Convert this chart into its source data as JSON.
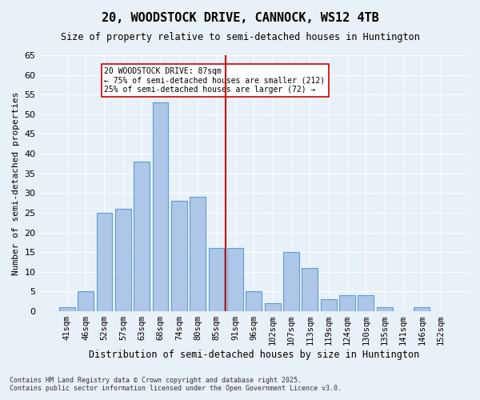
{
  "title": "20, WOODSTOCK DRIVE, CANNOCK, WS12 4TB",
  "subtitle": "Size of property relative to semi-detached houses in Huntington",
  "xlabel": "Distribution of semi-detached houses by size in Huntington",
  "ylabel": "Number of semi-detached properties",
  "bar_labels": [
    "41sqm",
    "46sqm",
    "52sqm",
    "57sqm",
    "63sqm",
    "68sqm",
    "74sqm",
    "80sqm",
    "85sqm",
    "91sqm",
    "96sqm",
    "102sqm",
    "107sqm",
    "113sqm",
    "119sqm",
    "124sqm",
    "130sqm",
    "135sqm",
    "141sqm",
    "146sqm",
    "152sqm"
  ],
  "bar_values": [
    1,
    5,
    25,
    26,
    38,
    53,
    28,
    29,
    16,
    16,
    5,
    2,
    15,
    11,
    3,
    4,
    4,
    1,
    0,
    1,
    0
  ],
  "bar_color": "#aec6e8",
  "bar_edge_color": "#5a9fd4",
  "background_color": "#e8f0f8",
  "grid_color": "#ffffff",
  "marker_value": 87,
  "marker_label": "20 WOODSTOCK DRIVE: 87sqm",
  "marker_smaller_pct": "75%",
  "marker_smaller_count": 212,
  "marker_larger_pct": "25%",
  "marker_larger_count": 72,
  "marker_color": "#cc0000",
  "ylim": [
    0,
    65
  ],
  "yticks": [
    0,
    5,
    10,
    15,
    20,
    25,
    30,
    35,
    40,
    45,
    50,
    55,
    60,
    65
  ],
  "footnote1": "Contains HM Land Registry data © Crown copyright and database right 2025.",
  "footnote2": "Contains public sector information licensed under the Open Government Licence v3.0."
}
